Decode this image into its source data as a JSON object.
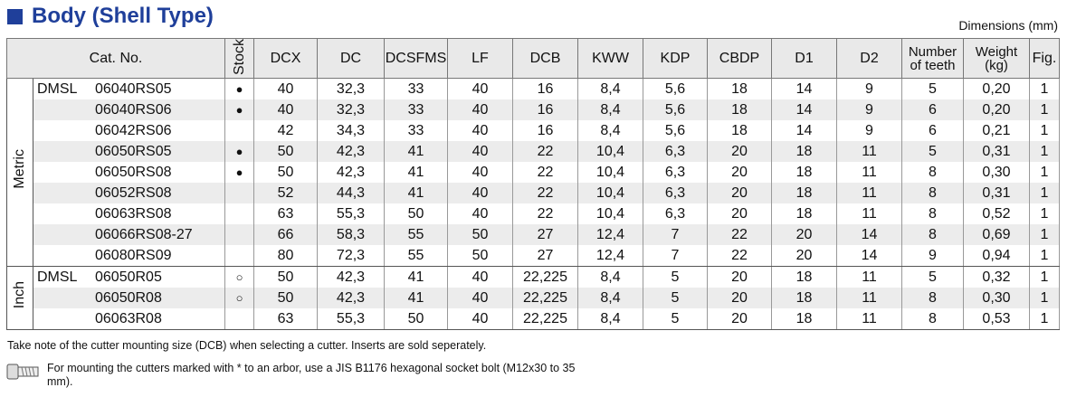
{
  "header": {
    "title": "Body (Shell Type)",
    "units": "Dimensions (mm)"
  },
  "table": {
    "columns": [
      "Cat. No.",
      "Stock",
      "DCX",
      "DC",
      "DCSFMS",
      "LF",
      "DCB",
      "KWW",
      "KDP",
      "CBDP",
      "D1",
      "D2",
      "Number of teeth",
      "Weight (kg)",
      "Fig."
    ],
    "groups": [
      {
        "label": "Metric",
        "series": "DMSL",
        "rows": [
          [
            "06040RS05",
            "●",
            "40",
            "32,3",
            "33",
            "40",
            "16",
            "8,4",
            "5,6",
            "18",
            "14",
            "9",
            "5",
            "0,20",
            "1"
          ],
          [
            "06040RS06",
            "●",
            "40",
            "32,3",
            "33",
            "40",
            "16",
            "8,4",
            "5,6",
            "18",
            "14",
            "9",
            "6",
            "0,20",
            "1"
          ],
          [
            "06042RS06",
            null,
            "42",
            "34,3",
            "33",
            "40",
            "16",
            "8,4",
            "5,6",
            "18",
            "14",
            "9",
            "6",
            "0,21",
            "1"
          ],
          [
            "06050RS05",
            "●",
            "50",
            "42,3",
            "41",
            "40",
            "22",
            "10,4",
            "6,3",
            "20",
            "18",
            "11",
            "5",
            "0,31",
            "1"
          ],
          [
            "06050RS08",
            "●",
            "50",
            "42,3",
            "41",
            "40",
            "22",
            "10,4",
            "6,3",
            "20",
            "18",
            "11",
            "8",
            "0,30",
            "1"
          ],
          [
            "06052RS08",
            null,
            "52",
            "44,3",
            "41",
            "40",
            "22",
            "10,4",
            "6,3",
            "20",
            "18",
            "11",
            "8",
            "0,31",
            "1"
          ],
          [
            "06063RS08",
            null,
            "63",
            "55,3",
            "50",
            "40",
            "22",
            "10,4",
            "6,3",
            "20",
            "18",
            "11",
            "8",
            "0,52",
            "1"
          ],
          [
            "06066RS08-27",
            null,
            "66",
            "58,3",
            "55",
            "50",
            "27",
            "12,4",
            "7",
            "22",
            "20",
            "14",
            "8",
            "0,69",
            "1"
          ],
          [
            "06080RS09",
            null,
            "80",
            "72,3",
            "55",
            "50",
            "27",
            "12,4",
            "7",
            "22",
            "20",
            "14",
            "9",
            "0,94",
            "1"
          ]
        ]
      },
      {
        "label": "Inch",
        "series": "DMSL",
        "rows": [
          [
            "06050R05",
            "○",
            "50",
            "42,3",
            "41",
            "40",
            "22,225",
            "8,4",
            "5",
            "20",
            "18",
            "11",
            "5",
            "0,32",
            "1"
          ],
          [
            "06050R08",
            "○",
            "50",
            "42,3",
            "41",
            "40",
            "22,225",
            "8,4",
            "5",
            "20",
            "18",
            "11",
            "8",
            "0,30",
            "1"
          ],
          [
            "06063R08",
            null,
            "63",
            "55,3",
            "50",
            "40",
            "22,225",
            "8,4",
            "5",
            "20",
            "18",
            "11",
            "8",
            "0,53",
            "1"
          ]
        ]
      }
    ]
  },
  "notes": [
    "Take note of the cutter mounting size (DCB) when selecting a cutter. Inserts are sold seperately.",
    "For mounting the cutters marked with * to an arbor, use a JIS B1176 hexagonal socket bolt (M12x30 to 35 mm)."
  ]
}
